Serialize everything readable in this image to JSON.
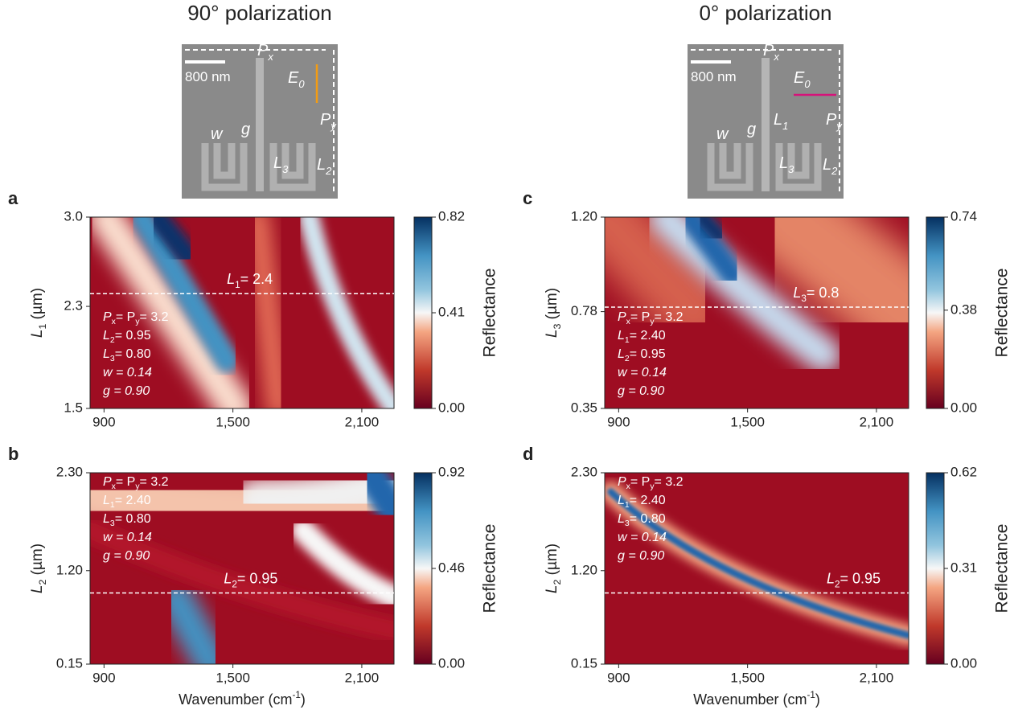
{
  "images": [
    {
      "title": "90° polarization",
      "labels": [
        [
          "800 nm"
        ],
        [
          "P",
          "x"
        ],
        [
          "E",
          "0"
        ],
        [
          "P",
          "y"
        ],
        [
          "w"
        ],
        [
          "g"
        ],
        [
          "L",
          "3"
        ],
        [
          "L",
          "2"
        ]
      ]
    },
    {
      "title": "0° polarization",
      "labels": [
        [
          "800 nm"
        ],
        [
          "P",
          "x"
        ],
        [
          "E",
          "0"
        ],
        [
          "P",
          "y"
        ],
        [
          "L",
          "1"
        ],
        [
          "w"
        ],
        [
          "g"
        ],
        [
          "L",
          "3"
        ],
        [
          "L",
          "2"
        ]
      ]
    }
  ],
  "chart_data": [
    {
      "type": "heatmap",
      "panel": "a",
      "ylabel": [
        "L",
        "1",
        " (µm)"
      ],
      "colorbar_label": "Reflectance",
      "xlim": [
        835,
        2250
      ],
      "xticks": [
        900,
        {
          "value": 1500,
          "label": "1,500"
        },
        {
          "value": 2100,
          "label": "2,100"
        }
      ],
      "ylim": [
        1.5,
        3.0
      ],
      "yticks": [
        1.5,
        2.3,
        {
          "value": 3.0,
          "label": "3.0"
        }
      ],
      "clim": [
        0,
        0.82
      ],
      "cticks": [
        {
          "value": 0,
          "label": "0.00"
        },
        0.41,
        0.82
      ],
      "params": [
        [
          "P",
          "x",
          "= P",
          "y",
          "= 3.2"
        ],
        [
          "L",
          "2",
          "= 0.95"
        ],
        [
          "L",
          "3",
          "= 0.80"
        ],
        [
          "w = 0.14"
        ],
        [
          "g  = 0.90"
        ]
      ],
      "marker": {
        "value": 2.4,
        "label": [
          "L",
          "1",
          "= 2.4"
        ]
      }
    },
    {
      "type": "heatmap",
      "panel": "c",
      "ylabel": [
        "L",
        "3",
        " (µm)"
      ],
      "colorbar_label": "Reflectance",
      "xlim": [
        835,
        2250
      ],
      "xticks": [
        900,
        {
          "value": 1500,
          "label": "1,500"
        },
        {
          "value": 2100,
          "label": "2,100"
        }
      ],
      "ylim": [
        0.35,
        1.2
      ],
      "yticks": [
        0.35,
        0.78,
        {
          "value": 1.2,
          "label": "1.20"
        }
      ],
      "clim": [
        0,
        0.74
      ],
      "cticks": [
        {
          "value": 0,
          "label": "0.00"
        },
        0.38,
        0.74
      ],
      "params": [
        [
          "P",
          "x",
          "= P",
          "y",
          "= 3.2"
        ],
        [
          "L",
          "1",
          "= 2.40"
        ],
        [
          "L",
          "2",
          "= 0.95"
        ],
        [
          "w = 0.14"
        ],
        [
          "g  = 0.90"
        ]
      ],
      "marker": {
        "value": 0.8,
        "label": [
          "L",
          "3",
          "= 0.8"
        ]
      }
    },
    {
      "type": "heatmap",
      "panel": "b",
      "ylabel": [
        "L",
        "2",
        " (µm)"
      ],
      "xlabel": [
        "Wavenumber (cm",
        "-1",
        ")"
      ],
      "colorbar_label": "Reflectance",
      "xlim": [
        835,
        2250
      ],
      "xticks": [
        900,
        {
          "value": 1500,
          "label": "1,500"
        },
        {
          "value": 2100,
          "label": "2,100"
        }
      ],
      "ylim": [
        0.15,
        2.3
      ],
      "yticks": [
        0.15,
        {
          "value": 1.2,
          "label": "1.20"
        },
        {
          "value": 2.3,
          "label": "2.30"
        }
      ],
      "clim": [
        0,
        0.92
      ],
      "cticks": [
        {
          "value": 0,
          "label": "0.00"
        },
        0.46,
        0.92
      ],
      "params": [
        [
          "P",
          "x",
          "= P",
          "y",
          "= 3.2"
        ],
        [
          "L",
          "1",
          "= 2.40"
        ],
        [
          "L",
          "3",
          "= 0.80"
        ],
        [
          "w = 0.14"
        ],
        [
          "g  = 0.90"
        ]
      ],
      "marker": {
        "value": 0.95,
        "label": [
          "L",
          "2",
          "= 0.95"
        ]
      }
    },
    {
      "type": "heatmap",
      "panel": "d",
      "ylabel": [
        "L",
        "2",
        " (µm)"
      ],
      "xlabel": [
        "Wavenumber (cm",
        "-1",
        ")"
      ],
      "colorbar_label": "Reflectance",
      "xlim": [
        835,
        2250
      ],
      "xticks": [
        900,
        {
          "value": 1500,
          "label": "1,500"
        },
        {
          "value": 2100,
          "label": "2,100"
        }
      ],
      "ylim": [
        0.15,
        2.3
      ],
      "yticks": [
        0.15,
        {
          "value": 1.2,
          "label": "1.20"
        },
        {
          "value": 2.3,
          "label": "2.30"
        }
      ],
      "clim": [
        0,
        0.62
      ],
      "cticks": [
        {
          "value": 0,
          "label": "0.00"
        },
        0.31,
        0.62
      ],
      "params": [
        [
          "P",
          "x",
          "= P",
          "y",
          "= 3.2"
        ],
        [
          "L",
          "1",
          "= 2.40"
        ],
        [
          "L",
          "3",
          "= 0.80"
        ],
        [
          "w = 0.14"
        ],
        [
          "g  = 0.90"
        ]
      ],
      "marker": {
        "value": 0.95,
        "label": [
          "L",
          "2",
          "= 0.95"
        ]
      }
    }
  ]
}
